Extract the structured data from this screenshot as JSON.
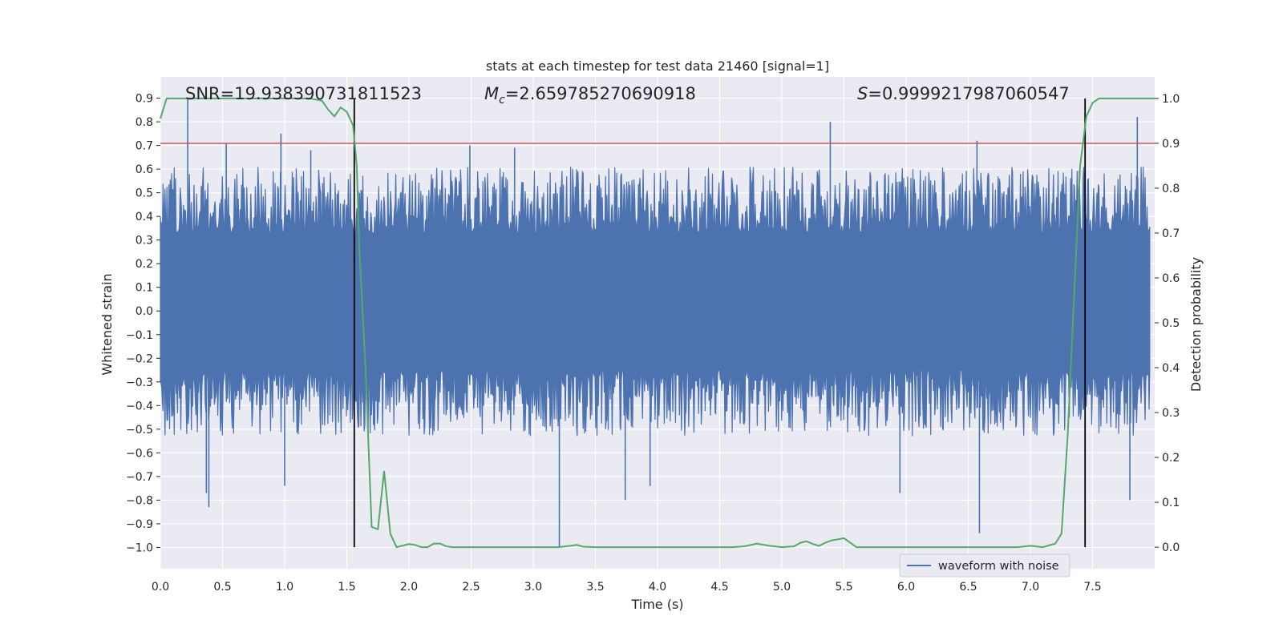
{
  "chart_data": {
    "type": "line",
    "title": "stats at each timestep for test data 21460 [signal=1]",
    "xlabel": "Time (s)",
    "ylabel": "Whitened strain",
    "y2label": "Detection probability",
    "xlim": [
      0.0,
      8.0
    ],
    "ylim": [
      -1.09,
      0.99
    ],
    "y2lim": [
      -0.048,
      1.048
    ],
    "xticks": [
      "0.0",
      "0.5",
      "1.0",
      "1.5",
      "2.0",
      "2.5",
      "3.0",
      "3.5",
      "4.0",
      "4.5",
      "5.0",
      "5.5",
      "6.0",
      "6.5",
      "7.0",
      "7.5"
    ],
    "yticks": [
      "0.9",
      "0.8",
      "0.7",
      "0.6",
      "0.5",
      "0.4",
      "0.3",
      "0.2",
      "0.1",
      "0.0",
      "-0.1",
      "-0.2",
      "-0.3",
      "-0.4",
      "-0.5",
      "-0.6",
      "-0.7",
      "-0.8",
      "-0.9",
      "-1.0"
    ],
    "y2ticks": [
      "1.0",
      "0.9",
      "0.8",
      "0.7",
      "0.6",
      "0.5",
      "0.4",
      "0.3",
      "0.2",
      "0.1",
      "0.0"
    ],
    "annotations": {
      "snr": "SNR=19.938390731811523",
      "mc_symbol": "M",
      "mc_sub": "c",
      "mc_value": "=2.659785270690918",
      "s_symbol": "S",
      "s_value": "=0.9999217987060547"
    },
    "threshold_probability": 0.9,
    "vertical_markers_s": [
      1.56,
      7.44
    ],
    "legend": "waveform with noise",
    "series": [
      {
        "name": "waveform with noise",
        "axis": "left",
        "color": "#4c72b0",
        "style": "dense noise",
        "core_range": [
          -0.25,
          0.33
        ],
        "spikes": [
          {
            "t": 0.22,
            "v": 0.9
          },
          {
            "t": 0.37,
            "v": -0.77
          },
          {
            "t": 0.39,
            "v": -0.83
          },
          {
            "t": 0.53,
            "v": 0.71
          },
          {
            "t": 0.97,
            "v": 0.75
          },
          {
            "t": 1.0,
            "v": -0.74
          },
          {
            "t": 1.21,
            "v": 0.68
          },
          {
            "t": 2.49,
            "v": 0.7
          },
          {
            "t": 2.85,
            "v": 0.69
          },
          {
            "t": 3.21,
            "v": -1.0
          },
          {
            "t": 3.74,
            "v": -0.8
          },
          {
            "t": 3.94,
            "v": -0.74
          },
          {
            "t": 5.39,
            "v": 0.8
          },
          {
            "t": 5.95,
            "v": -0.77
          },
          {
            "t": 6.57,
            "v": 0.72
          },
          {
            "t": 6.59,
            "v": -0.94
          },
          {
            "t": 7.8,
            "v": -0.8
          },
          {
            "t": 7.86,
            "v": 0.82
          }
        ]
      },
      {
        "name": "detection probability",
        "axis": "right",
        "color": "#55a868",
        "x": [
          0.0,
          0.05,
          0.1,
          0.2,
          0.3,
          0.4,
          0.5,
          0.6,
          0.7,
          0.8,
          0.9,
          1.0,
          1.1,
          1.2,
          1.3,
          1.35,
          1.4,
          1.45,
          1.5,
          1.55,
          1.58,
          1.6,
          1.65,
          1.7,
          1.75,
          1.8,
          1.85,
          1.9,
          2.0,
          2.05,
          2.1,
          2.15,
          2.2,
          2.25,
          2.3,
          2.35,
          2.4,
          2.5,
          2.7,
          2.9,
          3.1,
          3.2,
          3.3,
          3.35,
          3.4,
          3.5,
          3.6,
          3.7,
          3.8,
          4.0,
          4.2,
          4.4,
          4.6,
          4.7,
          4.8,
          4.9,
          5.0,
          5.1,
          5.15,
          5.2,
          5.25,
          5.3,
          5.35,
          5.4,
          5.5,
          5.55,
          5.6,
          5.7,
          5.8,
          5.9,
          6.0,
          6.1,
          6.2,
          6.3,
          6.4,
          6.5,
          6.6,
          6.7,
          6.8,
          6.9,
          7.0,
          7.1,
          7.2,
          7.25,
          7.3,
          7.35,
          7.4,
          7.45,
          7.5,
          7.55,
          7.6,
          7.7,
          7.8,
          7.9,
          8.0
        ],
        "y": [
          0.955,
          1.0,
          1.0,
          1.0,
          1.0,
          1.0,
          1.0,
          1.0,
          1.0,
          1.0,
          1.0,
          1.0,
          1.0,
          1.0,
          0.995,
          0.975,
          0.96,
          0.98,
          0.97,
          0.94,
          0.85,
          0.67,
          0.4,
          0.045,
          0.04,
          0.17,
          0.03,
          0.0,
          0.007,
          0.005,
          0.0,
          0.0,
          0.008,
          0.008,
          0.002,
          0.0,
          0.0,
          0.0,
          0.0,
          0.0,
          0.0,
          0.0,
          0.003,
          0.005,
          0.001,
          0.0,
          0.0,
          0.0,
          0.0,
          0.0,
          0.0,
          0.0,
          0.0,
          0.002,
          0.008,
          0.003,
          0.0,
          0.002,
          0.01,
          0.013,
          0.007,
          0.003,
          0.01,
          0.015,
          0.02,
          0.01,
          0.0,
          0.0,
          0.0,
          0.0,
          0.0,
          0.0,
          0.0,
          0.0,
          0.0,
          0.0,
          0.0,
          0.0,
          0.0,
          0.0,
          0.003,
          0.0,
          0.008,
          0.03,
          0.25,
          0.55,
          0.85,
          0.96,
          0.99,
          1.0,
          1.0,
          1.0,
          1.0,
          1.0,
          1.0
        ]
      }
    ]
  }
}
